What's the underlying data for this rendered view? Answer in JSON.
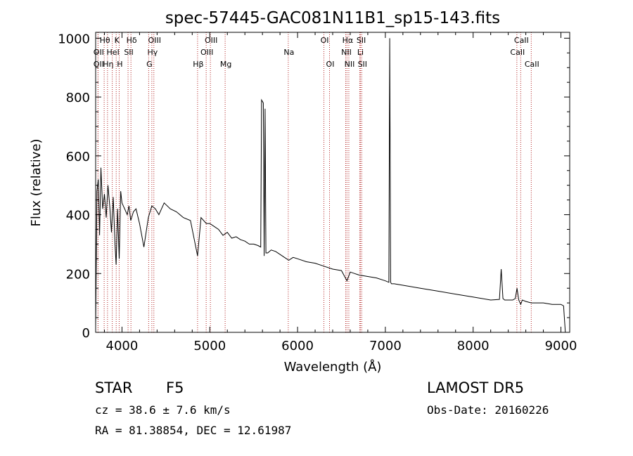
{
  "chart_data": {
    "type": "line",
    "title": "spec-57445-GAC081N11B1_sp15-143.fits",
    "xlabel": "Wavelength (Å)",
    "ylabel": "Flux (relative)",
    "xlim": [
      3700,
      9100
    ],
    "ylim": [
      0,
      1020
    ],
    "xticks": [
      4000,
      5000,
      6000,
      7000,
      8000,
      9000
    ],
    "yticks": [
      0,
      200,
      400,
      600,
      800,
      1000
    ],
    "grid": false,
    "line_color": "#000000",
    "marker_color": "#b22222",
    "series": [
      {
        "x": [
          3700,
          3715,
          3730,
          3745,
          3760,
          3780,
          3800,
          3820,
          3840,
          3860,
          3880,
          3900,
          3920,
          3933,
          3950,
          3968,
          3985,
          4000,
          4030,
          4060,
          4080,
          4100,
          4130,
          4160,
          4200,
          4250,
          4300,
          4340,
          4380,
          4420,
          4480,
          4550,
          4620,
          4700,
          4780,
          4861,
          4900,
          4960,
          5000,
          5050,
          5100,
          5150,
          5200,
          5250,
          5300,
          5350,
          5400,
          5450,
          5500,
          5550,
          5580,
          5590,
          5610,
          5620,
          5630,
          5640,
          5660,
          5700,
          5750,
          5800,
          5850,
          5900,
          5950,
          6000,
          6100,
          6200,
          6300,
          6400,
          6500,
          6563,
          6600,
          6650,
          6700,
          6800,
          6900,
          7000,
          7040,
          7050,
          7060,
          7070,
          7100,
          7200,
          7400,
          7600,
          7800,
          8000,
          8200,
          8300,
          8320,
          8340,
          8360,
          8400,
          8450,
          8480,
          8500,
          8520,
          8542,
          8560,
          8600,
          8662,
          8700,
          8800,
          8900,
          9000,
          9030,
          9050
        ],
        "y": [
          20,
          480,
          520,
          330,
          560,
          420,
          470,
          390,
          500,
          430,
          340,
          460,
          300,
          230,
          420,
          250,
          480,
          440,
          420,
          400,
          430,
          380,
          410,
          420,
          370,
          290,
          390,
          430,
          420,
          400,
          440,
          420,
          410,
          390,
          380,
          260,
          390,
          370,
          370,
          360,
          350,
          330,
          340,
          320,
          325,
          315,
          310,
          300,
          300,
          295,
          290,
          790,
          780,
          260,
          760,
          270,
          270,
          280,
          275,
          265,
          255,
          245,
          255,
          250,
          240,
          235,
          225,
          215,
          210,
          175,
          205,
          200,
          195,
          190,
          185,
          175,
          170,
          1000,
          170,
          165,
          165,
          160,
          150,
          140,
          130,
          120,
          110,
          112,
          215,
          115,
          110,
          110,
          110,
          115,
          150,
          110,
          95,
          110,
          105,
          100,
          100,
          100,
          95,
          95,
          90,
          0
        ]
      }
    ],
    "line_markers": [
      {
        "label": "Hθ",
        "x": 3797,
        "row": 0
      },
      {
        "label": "OII",
        "x": 3727,
        "row": 1
      },
      {
        "label": "OII",
        "x": 3727,
        "row": 2
      },
      {
        "label": "K",
        "x": 3934,
        "row": 0
      },
      {
        "label": "Hη",
        "x": 3835,
        "row": 2
      },
      {
        "label": "HeI",
        "x": 3889,
        "row": 1
      },
      {
        "label": "H",
        "x": 3968,
        "row": 2
      },
      {
        "label": "Hδ",
        "x": 4102,
        "row": 0
      },
      {
        "label": "SII",
        "x": 4069,
        "row": 1
      },
      {
        "label": "OIII",
        "x": 4363,
        "row": 0
      },
      {
        "label": "Hγ",
        "x": 4340,
        "row": 1
      },
      {
        "label": "G",
        "x": 4304,
        "row": 2
      },
      {
        "label": "OIII",
        "x": 5007,
        "row": 0
      },
      {
        "label": "OIII",
        "x": 4959,
        "row": 1
      },
      {
        "label": "Hβ",
        "x": 4861,
        "row": 2
      },
      {
        "label": "Mg",
        "x": 5175,
        "row": 2
      },
      {
        "label": "Na",
        "x": 5894,
        "row": 1
      },
      {
        "label": "OI",
        "x": 6300,
        "row": 0
      },
      {
        "label": "OI",
        "x": 6364,
        "row": 2
      },
      {
        "label": "Hα",
        "x": 6563,
        "row": 0
      },
      {
        "label": "SII",
        "x": 6717,
        "row": 0
      },
      {
        "label": "NII",
        "x": 6548,
        "row": 1
      },
      {
        "label": "Li",
        "x": 6708,
        "row": 1
      },
      {
        "label": "NII",
        "x": 6584,
        "row": 2
      },
      {
        "label": "SII",
        "x": 6731,
        "row": 2
      },
      {
        "label": "CaII",
        "x": 8542,
        "row": 0
      },
      {
        "label": "CaII",
        "x": 8498,
        "row": 1
      },
      {
        "label": "CaII",
        "x": 8662,
        "row": 2
      }
    ]
  },
  "info": {
    "class_label": "STAR",
    "subclass": "F5",
    "survey": "LAMOST  DR5",
    "cz": "cz = 38.6 ± 7.6 km/s",
    "obs_date": "Obs-Date: 20160226",
    "coords": "RA =  81.38854, DEC =  12.61987"
  }
}
